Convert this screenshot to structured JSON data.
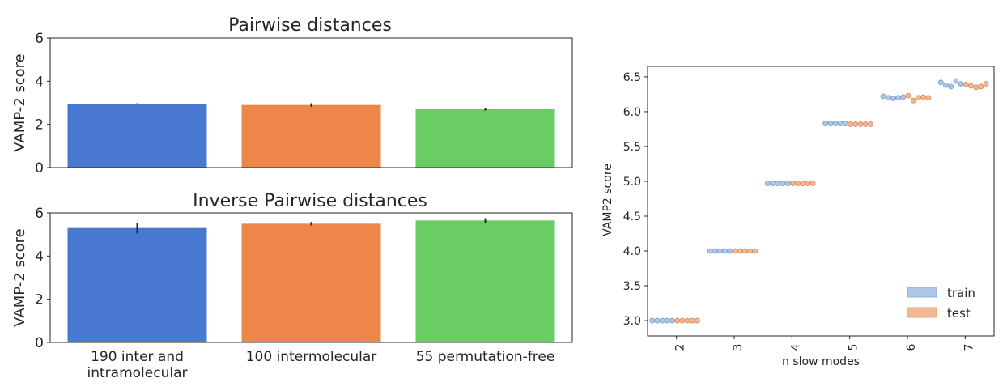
{
  "chart_data": [
    {
      "type": "bar",
      "title": "Pairwise distances",
      "ylabel": "VAMP-2 score",
      "categories": [
        "190 inter and intramolecular",
        "100 intermolecular",
        "55 permutation-free"
      ],
      "values": [
        2.95,
        2.9,
        2.7
      ],
      "errors": [
        0.03,
        0.08,
        0.06
      ],
      "ylim": [
        0,
        6
      ],
      "yticks": [
        0,
        2,
        4,
        6
      ],
      "colors": [
        "#4878d0",
        "#ee854a",
        "#6acc64"
      ],
      "grid": false
    },
    {
      "type": "bar",
      "title": "Inverse Pairwise distances",
      "ylabel": "VAMP-2 score",
      "categories": [
        "190 inter and intramolecular",
        "100 intermolecular",
        "55 permutation-free"
      ],
      "category_lines": [
        [
          "190 inter and",
          "intramolecular"
        ],
        [
          "100 intermolecular"
        ],
        [
          "55 permutation-free"
        ]
      ],
      "values": [
        5.3,
        5.5,
        5.65
      ],
      "errors": [
        0.25,
        0.08,
        0.1
      ],
      "ylim": [
        0,
        6
      ],
      "yticks": [
        0,
        2,
        4,
        6
      ],
      "colors": [
        "#4878d0",
        "#ee854a",
        "#6acc64"
      ],
      "grid": false
    },
    {
      "type": "scatter",
      "subtype": "swarm",
      "xlabel": "n slow modes",
      "ylabel": "VAMP2 score",
      "categories": [
        "2",
        "3",
        "4",
        "5",
        "6",
        "7"
      ],
      "ylim": [
        2.78,
        6.65
      ],
      "yticks": [
        "3.0",
        "3.5",
        "4.0",
        "4.5",
        "5.0",
        "5.5",
        "6.0",
        "6.5"
      ],
      "legend_position": "lower-right",
      "grid": false,
      "series": [
        {
          "name": "train",
          "color": "#8fb2de",
          "values": [
            [
              3.0,
              3.0,
              3.0,
              3.0,
              3.0
            ],
            [
              4.0,
              4.0,
              4.0,
              4.0,
              4.0
            ],
            [
              4.97,
              4.97,
              4.97,
              4.97,
              4.97
            ],
            [
              5.83,
              5.83,
              5.83,
              5.83,
              5.83
            ],
            [
              6.22,
              6.2,
              6.19,
              6.2,
              6.21
            ],
            [
              6.42,
              6.38,
              6.36,
              6.44,
              6.4
            ]
          ]
        },
        {
          "name": "test",
          "color": "#eda277",
          "values": [
            [
              3.0,
              3.0,
              3.0,
              3.0,
              3.0
            ],
            [
              4.0,
              4.0,
              4.0,
              4.0,
              4.0
            ],
            [
              4.97,
              4.97,
              4.97,
              4.97,
              4.97
            ],
            [
              5.82,
              5.82,
              5.82,
              5.82,
              5.82
            ],
            [
              6.23,
              6.16,
              6.2,
              6.21,
              6.2
            ],
            [
              6.39,
              6.37,
              6.35,
              6.36,
              6.4
            ]
          ]
        }
      ]
    }
  ]
}
